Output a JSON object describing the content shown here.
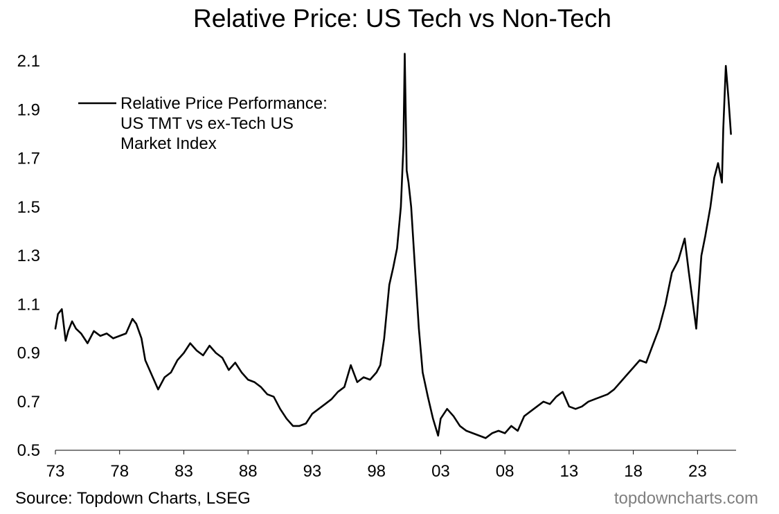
{
  "chart_data": {
    "type": "line",
    "title": "Relative Price: US Tech vs Non-Tech",
    "xlabel": "",
    "ylabel": "",
    "xlim": [
      1973,
      2026
    ],
    "ylim": [
      0.5,
      2.1
    ],
    "grid": false,
    "legend_position": "top-left",
    "x_ticks": [
      {
        "value": 1973,
        "label": "73"
      },
      {
        "value": 1978,
        "label": "78"
      },
      {
        "value": 1983,
        "label": "83"
      },
      {
        "value": 1988,
        "label": "88"
      },
      {
        "value": 1993,
        "label": "93"
      },
      {
        "value": 1998,
        "label": "98"
      },
      {
        "value": 2003,
        "label": "03"
      },
      {
        "value": 2008,
        "label": "08"
      },
      {
        "value": 2013,
        "label": "13"
      },
      {
        "value": 2018,
        "label": "18"
      },
      {
        "value": 2023,
        "label": "23"
      }
    ],
    "y_ticks": [
      {
        "value": 0.5,
        "label": "0.5"
      },
      {
        "value": 0.7,
        "label": "0.7"
      },
      {
        "value": 0.9,
        "label": "0.9"
      },
      {
        "value": 1.1,
        "label": "1.1"
      },
      {
        "value": 1.3,
        "label": "1.3"
      },
      {
        "value": 1.5,
        "label": "1.5"
      },
      {
        "value": 1.7,
        "label": "1.7"
      },
      {
        "value": 1.9,
        "label": "1.9"
      },
      {
        "value": 2.1,
        "label": "2.1"
      }
    ],
    "series": [
      {
        "name": "Relative Price Performance: US TMT vs ex-Tech US Market Index",
        "legend_lines": [
          "Relative Price Performance:",
          "US TMT vs ex-Tech US",
          "Market Index"
        ],
        "color": "#000000",
        "x": [
          1973.0,
          1973.2,
          1973.5,
          1973.8,
          1974.0,
          1974.3,
          1974.6,
          1975.0,
          1975.5,
          1976.0,
          1976.5,
          1977.0,
          1977.5,
          1978.0,
          1978.5,
          1979.0,
          1979.3,
          1979.7,
          1980.0,
          1980.5,
          1981.0,
          1981.5,
          1982.0,
          1982.5,
          1983.0,
          1983.5,
          1984.0,
          1984.5,
          1985.0,
          1985.5,
          1986.0,
          1986.5,
          1987.0,
          1987.5,
          1988.0,
          1988.5,
          1989.0,
          1989.5,
          1990.0,
          1990.5,
          1991.0,
          1991.5,
          1992.0,
          1992.5,
          1993.0,
          1993.5,
          1994.0,
          1994.5,
          1995.0,
          1995.5,
          1996.0,
          1996.5,
          1997.0,
          1997.5,
          1998.0,
          1998.3,
          1998.6,
          1999.0,
          1999.3,
          1999.6,
          1999.9,
          2000.1,
          2000.2,
          2000.35,
          2000.5,
          2000.7,
          2001.0,
          2001.3,
          2001.6,
          2002.0,
          2002.4,
          2002.8,
          2003.0,
          2003.5,
          2004.0,
          2004.5,
          2005.0,
          2005.5,
          2006.0,
          2006.5,
          2007.0,
          2007.5,
          2008.0,
          2008.5,
          2009.0,
          2009.5,
          2010.0,
          2010.5,
          2011.0,
          2011.5,
          2012.0,
          2012.5,
          2013.0,
          2013.5,
          2014.0,
          2014.5,
          2015.0,
          2015.5,
          2016.0,
          2016.5,
          2017.0,
          2017.5,
          2018.0,
          2018.5,
          2019.0,
          2019.5,
          2020.0,
          2020.5,
          2021.0,
          2021.5,
          2022.0,
          2022.3,
          2022.6,
          2022.9,
          2023.0,
          2023.3,
          2023.6,
          2024.0,
          2024.3,
          2024.6,
          2024.9,
          2025.0,
          2025.2,
          2025.4,
          2025.6
        ],
        "values": [
          1.0,
          1.06,
          1.08,
          0.95,
          0.99,
          1.03,
          1.0,
          0.98,
          0.94,
          0.99,
          0.97,
          0.98,
          0.96,
          0.97,
          0.98,
          1.04,
          1.02,
          0.96,
          0.87,
          0.81,
          0.75,
          0.8,
          0.82,
          0.87,
          0.9,
          0.94,
          0.91,
          0.89,
          0.93,
          0.9,
          0.88,
          0.83,
          0.86,
          0.82,
          0.79,
          0.78,
          0.76,
          0.73,
          0.72,
          0.67,
          0.63,
          0.6,
          0.6,
          0.61,
          0.65,
          0.67,
          0.69,
          0.71,
          0.74,
          0.76,
          0.85,
          0.78,
          0.8,
          0.79,
          0.82,
          0.85,
          0.96,
          1.18,
          1.25,
          1.33,
          1.5,
          1.75,
          2.13,
          1.65,
          1.6,
          1.5,
          1.25,
          1.0,
          0.82,
          0.72,
          0.63,
          0.56,
          0.63,
          0.67,
          0.64,
          0.6,
          0.58,
          0.57,
          0.56,
          0.55,
          0.57,
          0.58,
          0.57,
          0.6,
          0.58,
          0.64,
          0.66,
          0.68,
          0.7,
          0.69,
          0.72,
          0.74,
          0.68,
          0.67,
          0.68,
          0.7,
          0.71,
          0.72,
          0.73,
          0.75,
          0.78,
          0.81,
          0.84,
          0.87,
          0.86,
          0.93,
          1.0,
          1.1,
          1.23,
          1.28,
          1.37,
          1.24,
          1.12,
          1.0,
          1.08,
          1.3,
          1.38,
          1.5,
          1.62,
          1.68,
          1.6,
          1.82,
          2.08,
          1.95,
          1.8
        ]
      }
    ]
  },
  "footer": {
    "source": "Source: Topdown Charts, LSEG",
    "brand": "topdowncharts.com",
    "brand_color": "#7f7f7f"
  }
}
